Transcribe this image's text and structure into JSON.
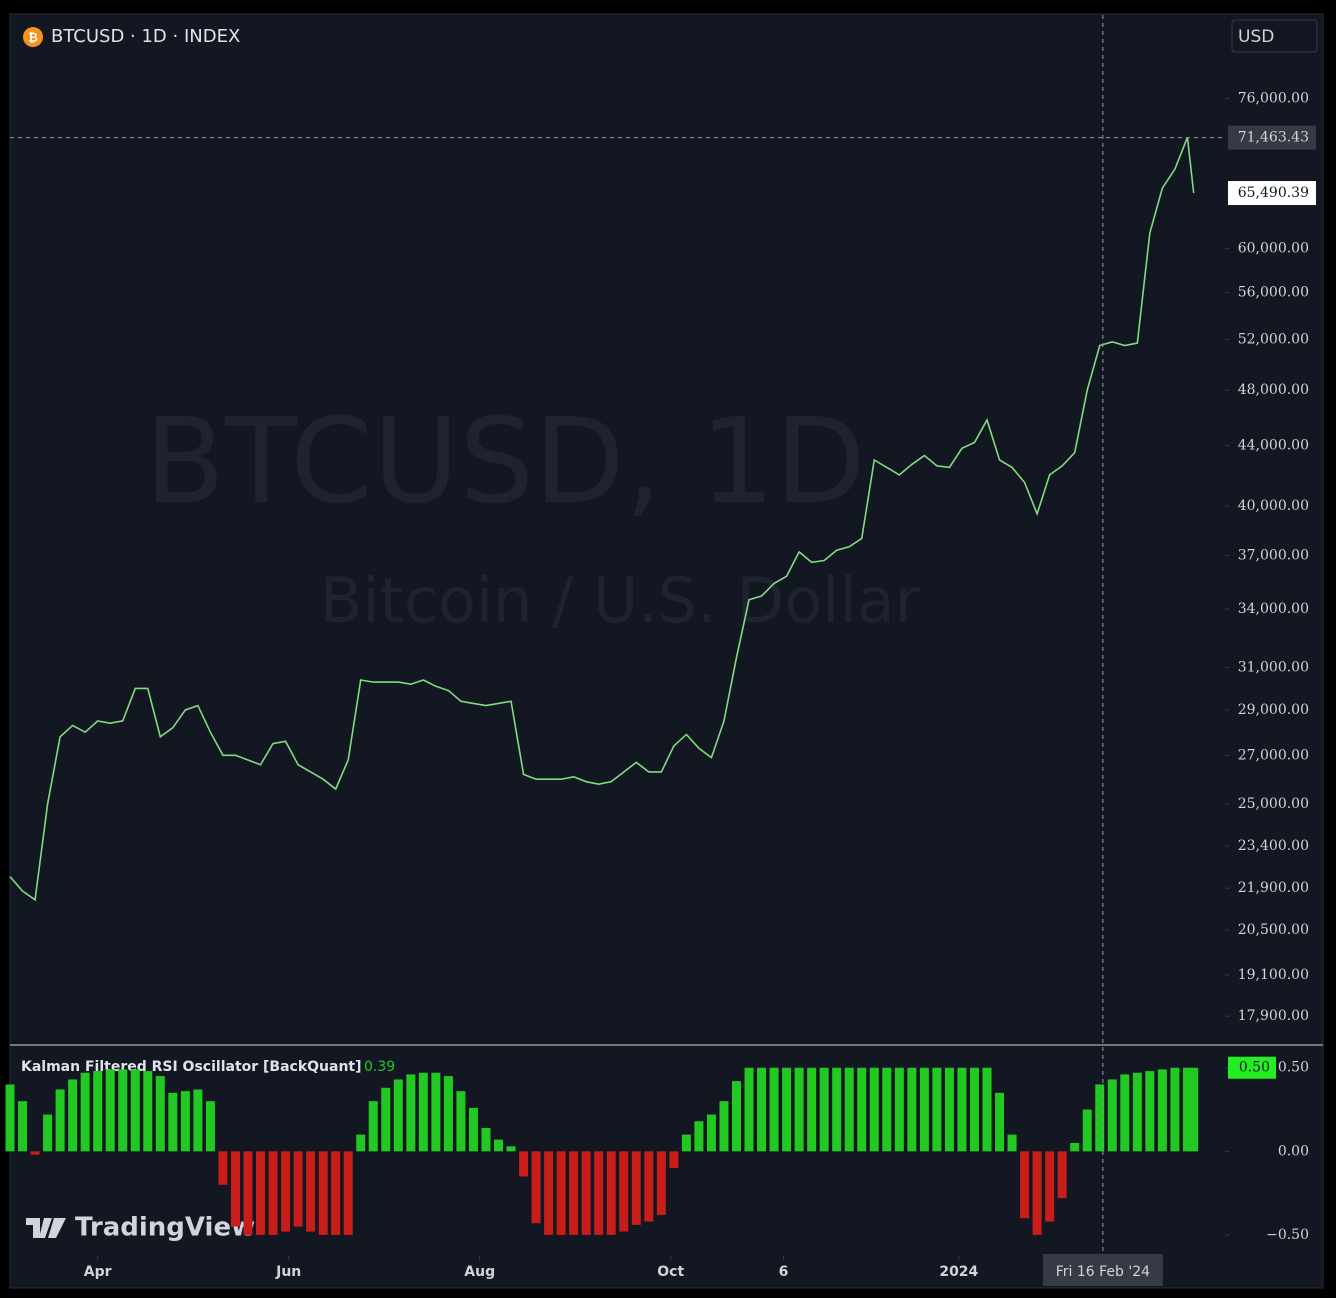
{
  "header": {
    "symbol_title": "BTCUSD · 1D · INDEX",
    "currency": "USD"
  },
  "watermark": {
    "symbol": "BTCUSD, 1D",
    "description": "Bitcoin / U.S. Dollar"
  },
  "brand": "TradingView",
  "chart_data": [
    {
      "type": "line",
      "log_scale": true,
      "color": "#7fdc7f",
      "x": [
        -28,
        -24,
        -20,
        -16,
        -12,
        -8,
        -4,
        0,
        4,
        8,
        12,
        16,
        20,
        24,
        28,
        32,
        36,
        40,
        44,
        48,
        52,
        56,
        60,
        64,
        68,
        72,
        76,
        80,
        84,
        88,
        92,
        96,
        100,
        104,
        108,
        112,
        116,
        120,
        124,
        128,
        132,
        136,
        140,
        144,
        148,
        152,
        156,
        160,
        164,
        168,
        172,
        176,
        180,
        184,
        188,
        192,
        196,
        200,
        204,
        208,
        212,
        216,
        220,
        224,
        228,
        232,
        236,
        240,
        244,
        248,
        252,
        256,
        260,
        264,
        268,
        272,
        276,
        280,
        284,
        288,
        292,
        296,
        300,
        304,
        308,
        312,
        316,
        320,
        324,
        328,
        332,
        336,
        340,
        344,
        348,
        350
      ],
      "values": [
        22300,
        21800,
        21500,
        25000,
        27800,
        28300,
        28000,
        28500,
        28400,
        28500,
        30000,
        30000,
        27800,
        28200,
        29000,
        29200,
        28000,
        27000,
        27000,
        26800,
        26600,
        27500,
        27600,
        26600,
        26300,
        26000,
        25600,
        26800,
        30400,
        30300,
        30300,
        30300,
        30200,
        30400,
        30100,
        29900,
        29400,
        29300,
        29200,
        29300,
        29400,
        26200,
        26000,
        26000,
        26000,
        26100,
        25900,
        25800,
        25900,
        26300,
        26700,
        26300,
        26300,
        27400,
        27900,
        27300,
        26900,
        28500,
        31500,
        34500,
        34700,
        35400,
        35800,
        37200,
        36600,
        36700,
        37300,
        37500,
        38000,
        43000,
        42500,
        42000,
        42700,
        43300,
        42600,
        42500,
        43800,
        44200,
        45800,
        43000,
        42500,
        41500,
        39500,
        42000,
        42600,
        43500,
        48000,
        51500,
        51800,
        51500,
        51700,
        61500,
        66000,
        68000,
        71500,
        65490.39
      ],
      "xlim": [
        -28,
        360
      ],
      "ylim": [
        17130,
        86700
      ],
      "yticks": [
        {
          "value": 76000,
          "label": "76,000.00"
        },
        {
          "value": 60000,
          "label": "60,000.00"
        },
        {
          "value": 56000,
          "label": "56,000.00"
        },
        {
          "value": 52000,
          "label": "52,000.00"
        },
        {
          "value": 48000,
          "label": "48,000.00"
        },
        {
          "value": 44000,
          "label": "44,000.00"
        },
        {
          "value": 40000,
          "label": "40,000.00"
        },
        {
          "value": 37000,
          "label": "37,000.00"
        },
        {
          "value": 34000,
          "label": "34,000.00"
        },
        {
          "value": 31000,
          "label": "31,000.00"
        },
        {
          "value": 29000,
          "label": "29,000.00"
        },
        {
          "value": 27000,
          "label": "27,000.00"
        },
        {
          "value": 25000,
          "label": "25,000.00"
        },
        {
          "value": 23400,
          "label": "23,400.00"
        },
        {
          "value": 21900,
          "label": "21,900.00"
        },
        {
          "value": 20500,
          "label": "20,500.00"
        },
        {
          "value": 19100,
          "label": "19,100.00"
        },
        {
          "value": 17900,
          "label": "17,900.00"
        }
      ],
      "xticks": [
        {
          "value": 0,
          "label": "Apr"
        },
        {
          "value": 61,
          "label": "Jun"
        },
        {
          "value": 122,
          "label": "Aug"
        },
        {
          "value": 183,
          "label": "Oct"
        },
        {
          "value": 219,
          "label": "6"
        },
        {
          "value": 275,
          "label": "2024"
        }
      ],
      "crosshair": {
        "x": {
          "value": 321,
          "label": "Fri 16 Feb '24"
        },
        "y": {
          "value": 71463.43,
          "label": "71,463.43"
        }
      },
      "last_price": {
        "value": 65490.39,
        "label": "65,490.39"
      }
    },
    {
      "type": "bar",
      "title": "Kalman Filtered RSI Oscillator [BackQuant]",
      "legend_value": 0.39,
      "positive_color": "#22c922",
      "negative_color": "#c81e1a",
      "x": [
        -28,
        -24,
        -20,
        -16,
        -12,
        -8,
        -4,
        0,
        4,
        8,
        12,
        16,
        20,
        24,
        28,
        32,
        36,
        40,
        44,
        48,
        52,
        56,
        60,
        64,
        68,
        72,
        76,
        80,
        84,
        88,
        92,
        96,
        100,
        104,
        108,
        112,
        116,
        120,
        124,
        128,
        132,
        136,
        140,
        144,
        148,
        152,
        156,
        160,
        164,
        168,
        172,
        176,
        180,
        184,
        188,
        192,
        196,
        200,
        204,
        208,
        212,
        216,
        220,
        224,
        228,
        232,
        236,
        240,
        244,
        248,
        252,
        256,
        260,
        264,
        268,
        272,
        276,
        280,
        284,
        288,
        292,
        296,
        300,
        304,
        308,
        312,
        316,
        320,
        324,
        328,
        332,
        336,
        340,
        344,
        348,
        350
      ],
      "values": [
        0.4,
        0.3,
        -0.02,
        0.22,
        0.37,
        0.43,
        0.47,
        0.48,
        0.49,
        0.49,
        0.49,
        0.48,
        0.45,
        0.35,
        0.36,
        0.37,
        0.3,
        -0.2,
        -0.45,
        -0.5,
        -0.5,
        -0.5,
        -0.48,
        -0.45,
        -0.48,
        -0.5,
        -0.5,
        -0.5,
        0.1,
        0.3,
        0.38,
        0.43,
        0.46,
        0.47,
        0.47,
        0.45,
        0.36,
        0.26,
        0.14,
        0.07,
        0.03,
        -0.15,
        -0.43,
        -0.5,
        -0.5,
        -0.5,
        -0.5,
        -0.5,
        -0.5,
        -0.48,
        -0.44,
        -0.42,
        -0.38,
        -0.1,
        0.1,
        0.18,
        0.22,
        0.3,
        0.42,
        0.5,
        0.5,
        0.5,
        0.5,
        0.5,
        0.5,
        0.5,
        0.5,
        0.5,
        0.5,
        0.5,
        0.5,
        0.5,
        0.5,
        0.5,
        0.5,
        0.5,
        0.5,
        0.5,
        0.5,
        0.35,
        0.1,
        -0.4,
        -0.5,
        -0.42,
        -0.28,
        0.05,
        0.25,
        0.4,
        0.43,
        0.46,
        0.47,
        0.48,
        0.49,
        0.5,
        0.5,
        0.5
      ],
      "xlim": [
        -28,
        360
      ],
      "ylim": [
        -0.62,
        0.63
      ],
      "yticks": [
        {
          "value": 0.5,
          "label": "0.50"
        },
        {
          "value": 0,
          "label": "0.00"
        },
        {
          "value": -0.5,
          "label": "−0.50"
        }
      ],
      "last_value": {
        "value": 0.5,
        "label": "0.50"
      }
    }
  ]
}
